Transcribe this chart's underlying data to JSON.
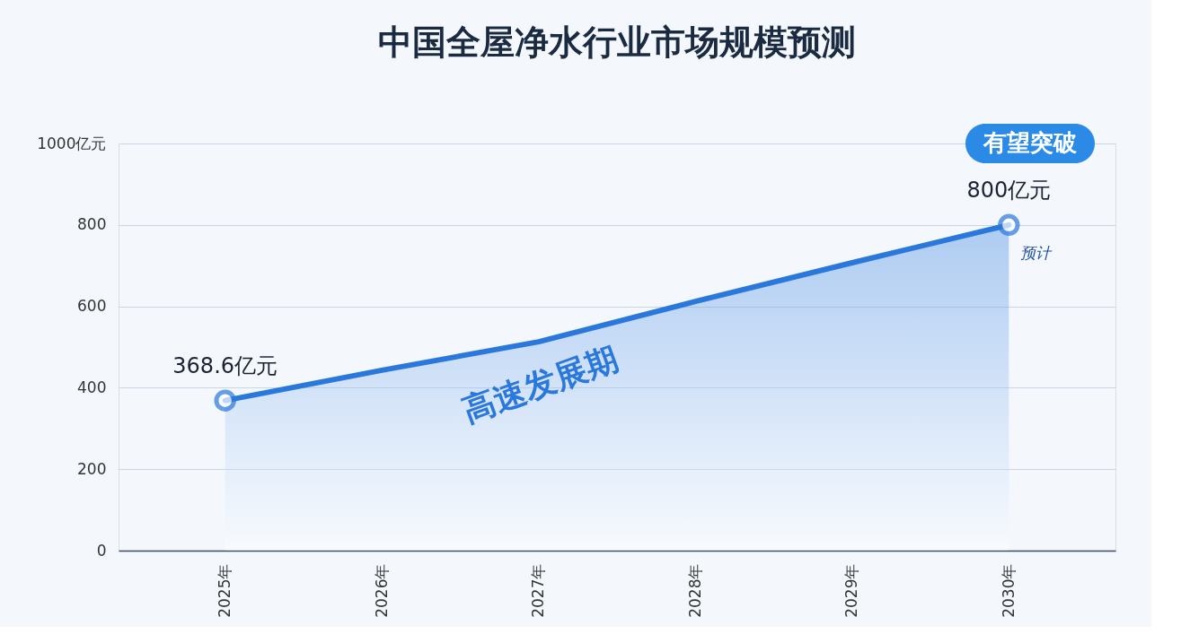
{
  "chart_data": {
    "type": "area",
    "title": "中国全屋净水行业市场规模预测",
    "categories": [
      "2025年",
      "2026年",
      "2027年",
      "2028年",
      "2029年",
      "2030年"
    ],
    "series": [
      {
        "color": "#2a78dc",
        "values": [
          368.6,
          443,
          513,
          612,
          707,
          800
        ],
        "value_labels": [
          "368.6亿元",
          null,
          null,
          null,
          null,
          "800亿元"
        ]
      }
    ],
    "ylim": [
      0,
      1000
    ],
    "yticks": [
      0,
      200,
      400,
      600,
      800,
      {
        "value": 1000,
        "label": "1000亿元"
      }
    ],
    "grid": "y",
    "annotations": [
      "高速发展期",
      "有望突破",
      {
        "text": "预计",
        "x": "2030年",
        "y": 800
      }
    ]
  }
}
